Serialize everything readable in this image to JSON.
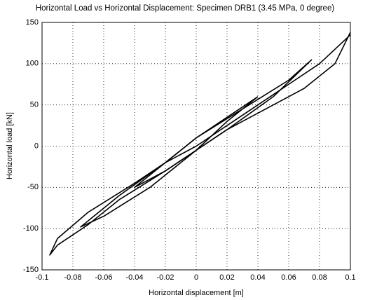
{
  "chart_data": {
    "type": "line",
    "title": "Horizontal Load vs Horizontal Displacement: Specimen DRB1 (3.45 MPa, 0 degree)",
    "x_label": "Horizontal displacement [m]",
    "y_label": "Horizontal load [kN]",
    "xlim": [
      -0.1,
      0.1
    ],
    "xticks": [
      -0.1,
      -0.08,
      -0.06,
      -0.04,
      -0.02,
      0,
      0.02,
      0.04,
      0.06,
      0.08,
      0.1
    ],
    "ylim": [
      -150,
      150
    ],
    "yticks": [
      -150,
      -100,
      -50,
      0,
      50,
      100,
      150
    ],
    "grid": true,
    "series": [
      {
        "color": "#000000",
        "x": [
          0.1,
          0.09,
          0.07,
          0.04,
          0.02,
          0,
          -0.02,
          -0.05,
          -0.07,
          -0.09,
          -0.095,
          -0.09,
          -0.07,
          -0.04,
          -0.02,
          0,
          0.02,
          0.04,
          0.06,
          0.08,
          0.1
        ],
        "values": [
          138,
          100,
          70,
          40,
          20,
          -5,
          -30,
          -65,
          -95,
          -120,
          -132,
          -112,
          -80,
          -45,
          -20,
          0,
          25,
          50,
          75,
          100,
          135
        ]
      },
      {
        "color": "#000000",
        "x": [
          0.075,
          0.05,
          0.02,
          0,
          -0.03,
          -0.06,
          -0.075,
          -0.05,
          -0.02,
          0,
          0.03,
          0.06,
          0.075
        ],
        "values": [
          105,
          60,
          20,
          -5,
          -50,
          -85,
          -98,
          -60,
          -20,
          10,
          45,
          80,
          105
        ]
      },
      {
        "color": "#000000",
        "x": [
          0.04,
          0.02,
          0,
          -0.02,
          -0.04,
          -0.02,
          0,
          0.02,
          0.04
        ],
        "values": [
          60,
          30,
          -5,
          -30,
          -50,
          -20,
          10,
          35,
          60
        ]
      }
    ]
  }
}
